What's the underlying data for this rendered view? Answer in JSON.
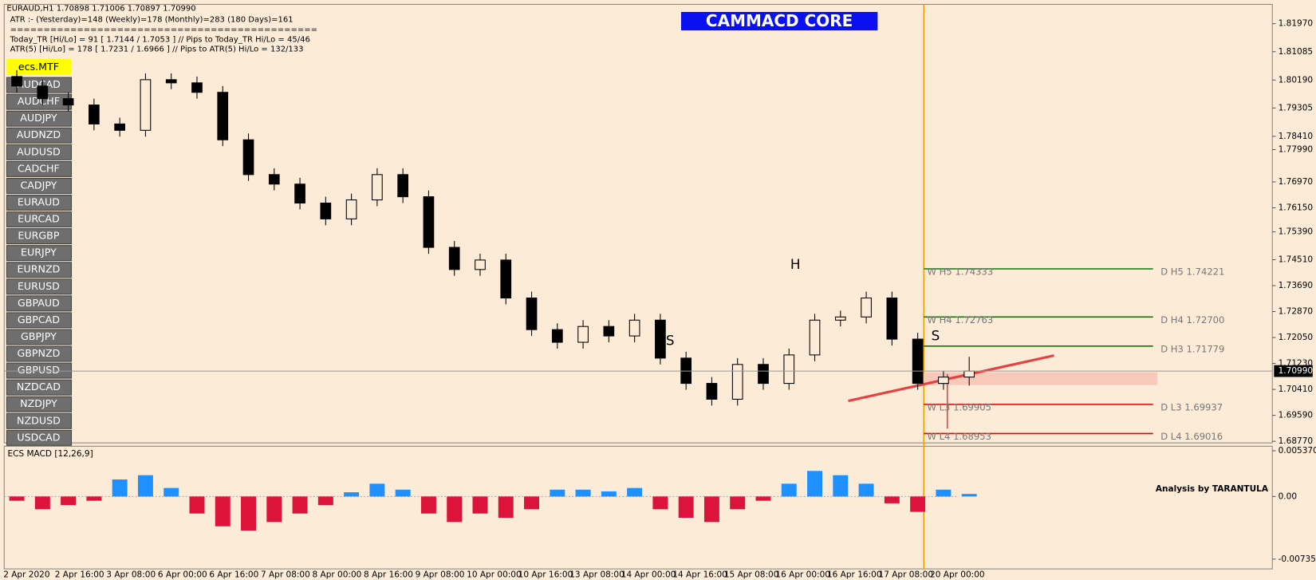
{
  "header": {
    "symbol_line": "EURAUD,H1  1.70898 1.71006 1.70897 1.70990",
    "atr_line": "ATR :- (Yesterday)=148      (Weekly)=178      (Monthly)=283      (180 Days)=161",
    "separator": "==============================================",
    "today_line": "Today_TR [Hi/Lo] = 91 [ 1.7144 / 1.7053 ]   // Pips to Today_TR Hi/Lo = 45/46",
    "atr5_line": "ATR(5)       [Hi/Lo] = 178 [ 1.7231 / 1.6966 ]   //  Pips to ATR(5) Hi/Lo      = 132/133",
    "banner": "CAMMACD CORE",
    "credit": "Analysis by TARANTULA"
  },
  "sidebar": {
    "active": "ecs.MTF",
    "symbols": [
      "AUDCAD",
      "AUDCHF",
      "AUDJPY",
      "AUDNZD",
      "AUDUSD",
      "CADCHF",
      "CADJPY",
      "EURAUD",
      "EURCAD",
      "EURGBP",
      "EURJPY",
      "EURNZD",
      "EURUSD",
      "GBPAUD",
      "GBPCAD",
      "GBPJPY",
      "GBPNZD",
      "GBPUSD",
      "NZDCAD",
      "NZDJPY",
      "NZDUSD",
      "USDCAD"
    ]
  },
  "annotations": [
    "S",
    "H",
    "S"
  ],
  "chart_data": [
    {
      "type": "candlestick",
      "categories": [
        "2 Apr 2020",
        null,
        "2 Apr 16:00",
        null,
        "3 Apr 08:00",
        null,
        "6 Apr 00:00",
        null,
        "6 Apr 16:00",
        null,
        "7 Apr 08:00",
        null,
        "8 Apr 00:00",
        null,
        "8 Apr 16:00",
        null,
        "9 Apr 08:00",
        null,
        "10 Apr 00:00",
        null,
        "10 Apr 16:00",
        null,
        "13 Apr 08:00",
        null,
        "14 Apr 00:00",
        null,
        "14 Apr 16:00",
        null,
        "15 Apr 08:00",
        null,
        "16 Apr 00:00",
        null,
        "16 Apr 16:00",
        null,
        "17 Apr 08:00",
        null,
        "20 Apr 00:00",
        null
      ],
      "open": [
        1.803,
        1.8,
        1.796,
        1.794,
        1.788,
        1.786,
        1.802,
        1.801,
        1.798,
        1.783,
        1.772,
        1.769,
        1.763,
        1.758,
        1.764,
        1.772,
        1.765,
        1.749,
        1.742,
        1.745,
        1.733,
        1.723,
        1.719,
        1.724,
        1.721,
        1.726,
        1.714,
        1.706,
        1.701,
        1.712,
        1.706,
        1.715,
        1.726,
        1.727,
        1.733,
        1.72,
        1.706,
        1.708
      ],
      "high": [
        1.805,
        1.802,
        1.798,
        1.796,
        1.79,
        1.804,
        1.804,
        1.803,
        1.8,
        1.785,
        1.774,
        1.771,
        1.765,
        1.766,
        1.774,
        1.774,
        1.767,
        1.751,
        1.747,
        1.747,
        1.735,
        1.725,
        1.726,
        1.726,
        1.728,
        1.728,
        1.716,
        1.708,
        1.714,
        1.714,
        1.717,
        1.728,
        1.729,
        1.735,
        1.735,
        1.722,
        1.71,
        1.7144
      ],
      "low": [
        1.798,
        1.794,
        1.792,
        1.786,
        1.784,
        1.784,
        1.799,
        1.796,
        1.781,
        1.77,
        1.767,
        1.761,
        1.756,
        1.756,
        1.762,
        1.763,
        1.747,
        1.74,
        1.74,
        1.731,
        1.721,
        1.717,
        1.717,
        1.719,
        1.719,
        1.712,
        1.704,
        1.699,
        1.699,
        1.704,
        1.704,
        1.713,
        1.724,
        1.725,
        1.718,
        1.704,
        1.704,
        1.7053
      ],
      "close": [
        1.8,
        1.796,
        1.794,
        1.788,
        1.786,
        1.802,
        1.801,
        1.798,
        1.783,
        1.772,
        1.769,
        1.763,
        1.758,
        1.764,
        1.772,
        1.765,
        1.749,
        1.742,
        1.745,
        1.733,
        1.723,
        1.719,
        1.724,
        1.721,
        1.726,
        1.714,
        1.706,
        1.701,
        1.712,
        1.706,
        1.715,
        1.726,
        1.727,
        1.733,
        1.72,
        1.706,
        1.708,
        1.7099
      ],
      "color": "#000000",
      "ylim": [
        1.6872,
        1.8258
      ],
      "yticks": [
        {
          "value": 1.8197,
          "label": "1.81970"
        },
        {
          "value": 1.81085,
          "label": "1.81085"
        },
        {
          "value": 1.8019,
          "label": "1.80190"
        },
        {
          "value": 1.79305,
          "label": "1.79305"
        },
        {
          "value": 1.7841,
          "label": "1.78410"
        },
        {
          "value": 1.7799,
          "label": "1.77990"
        },
        {
          "value": 1.7697,
          "label": "1.76970"
        },
        {
          "value": 1.7615,
          "label": "1.76150"
        },
        {
          "value": 1.7539,
          "label": "1.75390"
        },
        {
          "value": 1.7451,
          "label": "1.74510"
        },
        {
          "value": 1.7369,
          "label": "1.73690"
        },
        {
          "value": 1.7287,
          "label": "1.72870"
        },
        {
          "value": 1.7205,
          "label": "1.72050"
        },
        {
          "value": 1.7123,
          "label": "1.71230"
        },
        {
          "value": 1.7041,
          "label": "1.70410"
        },
        {
          "value": 1.6959,
          "label": "1.69590"
        },
        {
          "value": 1.6877,
          "label": "1.68770"
        }
      ],
      "current_price": {
        "value": 1.7099,
        "label": "1.70990"
      },
      "levels": [
        {
          "w": "W H5 1.74333",
          "label": "D H5 1.74221",
          "value": 1.74221,
          "color": "#008000"
        },
        {
          "w": "W H4 1.72763",
          "label": "D H4 1.72700",
          "value": 1.727,
          "color": "#008000"
        },
        {
          "label": "D H3 1.71779",
          "value": 1.71779,
          "color": "#008000"
        },
        {
          "w": "W L3 1.69905",
          "label": "D L3 1.69937",
          "value": 1.69937,
          "color": "#e00000"
        },
        {
          "w": "W L4 1.68953",
          "label": "D L4 1.69016",
          "value": 1.69016,
          "color": "#e00000"
        }
      ]
    },
    {
      "type": "bar",
      "title": "ECS MACD [12,26,9]",
      "values": [
        -0.0005,
        -0.0015,
        -0.001,
        -0.0005,
        0.002,
        0.0025,
        0.001,
        -0.002,
        -0.0035,
        -0.004,
        -0.003,
        -0.002,
        -0.001,
        0.0005,
        0.0015,
        0.0008,
        -0.002,
        -0.003,
        -0.002,
        -0.0025,
        -0.0015,
        0.0008,
        0.0008,
        0.0006,
        0.001,
        -0.0015,
        -0.0025,
        -0.003,
        -0.0015,
        -0.0005,
        0.0015,
        0.003,
        0.0025,
        0.0015,
        -0.0008,
        -0.0018,
        0.0008,
        0.0003
      ],
      "color_up": "#1e90ff",
      "color_down": "#dc143c",
      "ylim": [
        -0.0085,
        0.0059
      ],
      "yticks": [
        0.0053702,
        {
          "value": 0,
          "label": "0.00"
        },
        -0.007353
      ]
    }
  ]
}
